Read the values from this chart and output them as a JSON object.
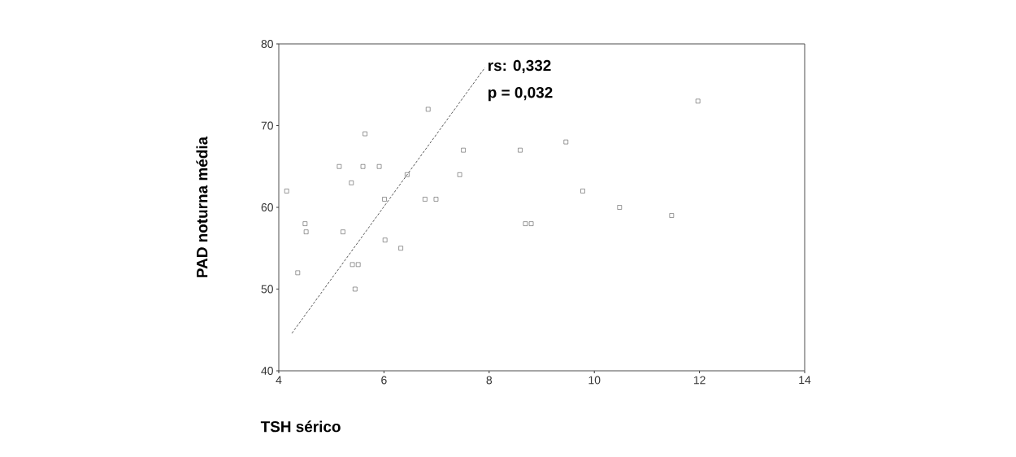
{
  "chart_data": {
    "type": "scatter",
    "xlabel": "TSH sérico",
    "ylabel": "PAD noturna média",
    "annotations": [
      "rs:  0,332",
      "p = 0,032"
    ],
    "xlim": [
      4,
      14
    ],
    "xticks": [
      4,
      6,
      8,
      10,
      12,
      14
    ],
    "ylim": [
      40,
      80
    ],
    "yticks": [
      40,
      50,
      60,
      70,
      80
    ],
    "grid": false,
    "series": [
      {
        "marker": "square",
        "color": "#555555",
        "x": [
          4.15,
          4.36,
          4.5,
          4.52,
          5.15,
          5.22,
          5.38,
          5.4,
          5.51,
          5.45,
          5.6,
          5.64,
          5.91,
          6.01,
          6.02,
          6.32,
          6.44,
          6.78,
          6.84,
          6.99,
          7.44,
          7.51,
          8.59,
          8.69,
          8.8,
          9.46,
          9.78,
          10.48,
          11.47,
          11.97
        ],
        "values": [
          62,
          52,
          58,
          57,
          65,
          57,
          63,
          53,
          53,
          50,
          65,
          69,
          65,
          61,
          56,
          55,
          64,
          61,
          72,
          61,
          64,
          67,
          67,
          58,
          58,
          68,
          62,
          60,
          59,
          73
        ]
      },
      {
        "type": "line",
        "marker": "none",
        "line_style": "dashed",
        "color": "#444444",
        "x": [
          4.25,
          7.92
        ],
        "values": [
          44.6,
          77.1
        ]
      }
    ]
  }
}
